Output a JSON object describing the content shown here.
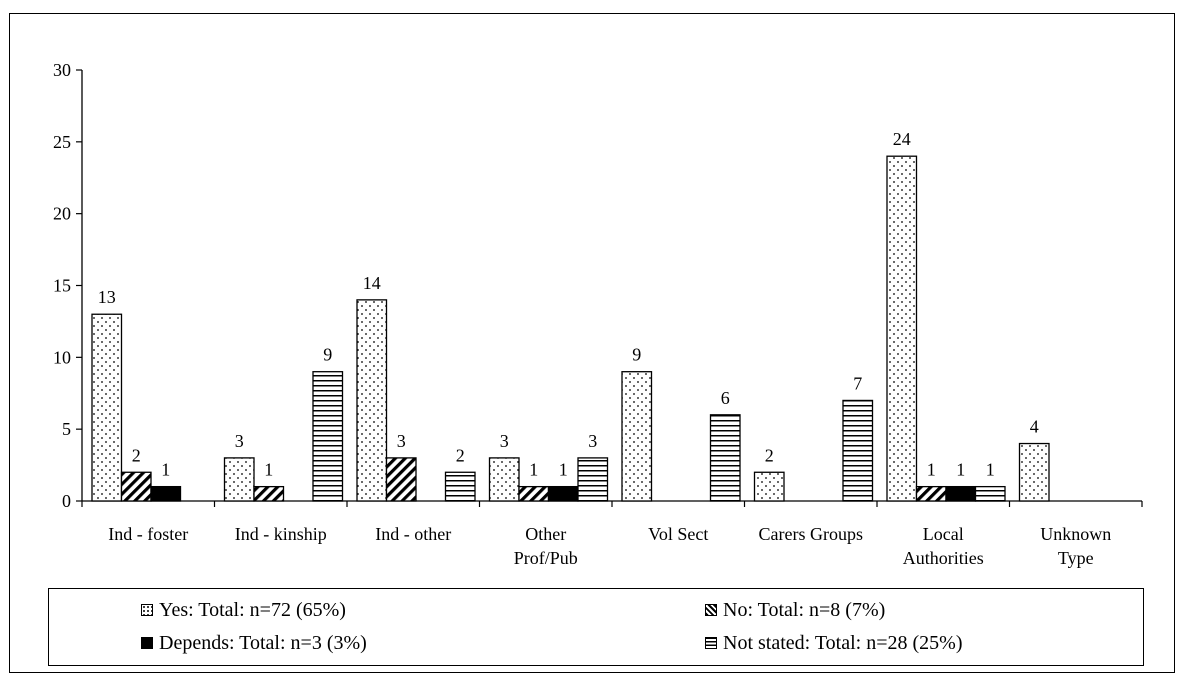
{
  "chart_data": {
    "type": "bar",
    "categories": [
      [
        "Ind - foster"
      ],
      [
        "Ind - kinship"
      ],
      [
        "Ind - other"
      ],
      [
        "Other",
        "Prof/Pub"
      ],
      [
        "Vol Sect"
      ],
      [
        "Carers Groups"
      ],
      [
        "Local",
        "Authorities"
      ],
      [
        "Unknown",
        "Type"
      ]
    ],
    "series": [
      {
        "name": "Yes: Total: n=72 (65%)",
        "pattern": "dots",
        "values": [
          13,
          3,
          14,
          3,
          9,
          2,
          24,
          4
        ]
      },
      {
        "name": "No: Total: n=8 (7%)",
        "pattern": "diagonal",
        "values": [
          2,
          1,
          3,
          1,
          null,
          null,
          1,
          null
        ]
      },
      {
        "name": "Depends: Total: n=3 (3%)",
        "pattern": "solid",
        "values": [
          1,
          null,
          null,
          1,
          null,
          null,
          1,
          null
        ]
      },
      {
        "name": "Not stated: Total: n=28 (25%)",
        "pattern": "horizontal",
        "values": [
          null,
          9,
          2,
          3,
          6,
          7,
          1,
          null
        ]
      }
    ],
    "ylim": [
      0,
      30
    ],
    "yticks": [
      0,
      5,
      10,
      15,
      20,
      25,
      30
    ],
    "grid": false,
    "legend_position": "bottom",
    "colors": {
      "ink": "#000000",
      "background": "#ffffff"
    }
  }
}
